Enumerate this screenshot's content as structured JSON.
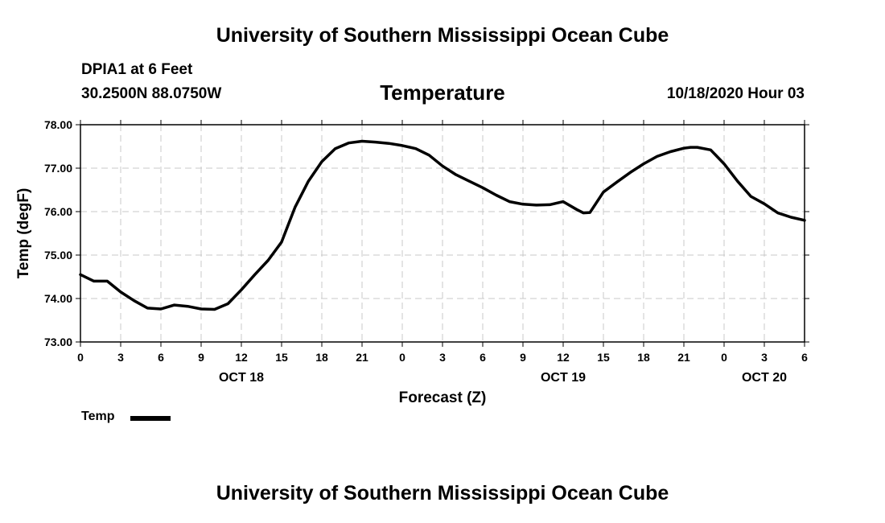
{
  "header": {
    "title": "University of Southern Mississippi Ocean Cube",
    "station": "DPIA1 at 6 Feet",
    "coordinates": "30.2500N 88.0750W",
    "chart_title": "Temperature",
    "datetime": "10/18/2020 Hour 03"
  },
  "footer": {
    "title": "University of Southern Mississippi Ocean Cube"
  },
  "legend": {
    "label": "Temp"
  },
  "chart_data": {
    "type": "line",
    "title": "Temperature",
    "xlabel": "Forecast (Z)",
    "ylabel": "Temp (degF)",
    "ylim": [
      73.0,
      78.0
    ],
    "xlim": [
      0,
      54
    ],
    "grid": true,
    "y_ticks": [
      "73.00",
      "74.00",
      "75.00",
      "76.00",
      "77.00",
      "78.00"
    ],
    "x_ticks": [
      "0",
      "3",
      "6",
      "9",
      "12",
      "15",
      "18",
      "21",
      "0",
      "3",
      "6",
      "9",
      "12",
      "15",
      "18",
      "21",
      "0",
      "3",
      "6"
    ],
    "date_labels": [
      {
        "label": "OCT 18",
        "hour": 12
      },
      {
        "label": "OCT 19",
        "hour": 36
      },
      {
        "label": "OCT 20",
        "hour": 51
      }
    ],
    "legend_position": "bottom-left",
    "series": [
      {
        "name": "Temp",
        "x": [
          0,
          1,
          2,
          3,
          4,
          5,
          6,
          7,
          8,
          9,
          10,
          11,
          12,
          13,
          14,
          15,
          15.5,
          16,
          17,
          18,
          19,
          20,
          21,
          22,
          23,
          24,
          25,
          26,
          27,
          28,
          29,
          30,
          31,
          32,
          33,
          34,
          35,
          36,
          37,
          37.5,
          38,
          39,
          40,
          41,
          42,
          43,
          44,
          45,
          45.5,
          46,
          47,
          48,
          49,
          50,
          51,
          52,
          53,
          54
        ],
        "values": [
          74.55,
          74.4,
          74.4,
          74.15,
          73.95,
          73.78,
          73.76,
          73.85,
          73.82,
          73.76,
          73.75,
          73.88,
          74.2,
          74.55,
          74.88,
          75.3,
          75.7,
          76.1,
          76.7,
          77.15,
          77.45,
          77.58,
          77.62,
          77.6,
          77.57,
          77.52,
          77.45,
          77.3,
          77.05,
          76.85,
          76.7,
          76.55,
          76.38,
          76.23,
          76.17,
          76.15,
          76.16,
          76.23,
          76.05,
          75.97,
          75.98,
          76.45,
          76.68,
          76.9,
          77.1,
          77.27,
          77.38,
          77.46,
          77.48,
          77.48,
          77.42,
          77.1,
          76.7,
          76.35,
          76.18,
          75.97,
          75.87,
          75.8
        ]
      }
    ]
  }
}
